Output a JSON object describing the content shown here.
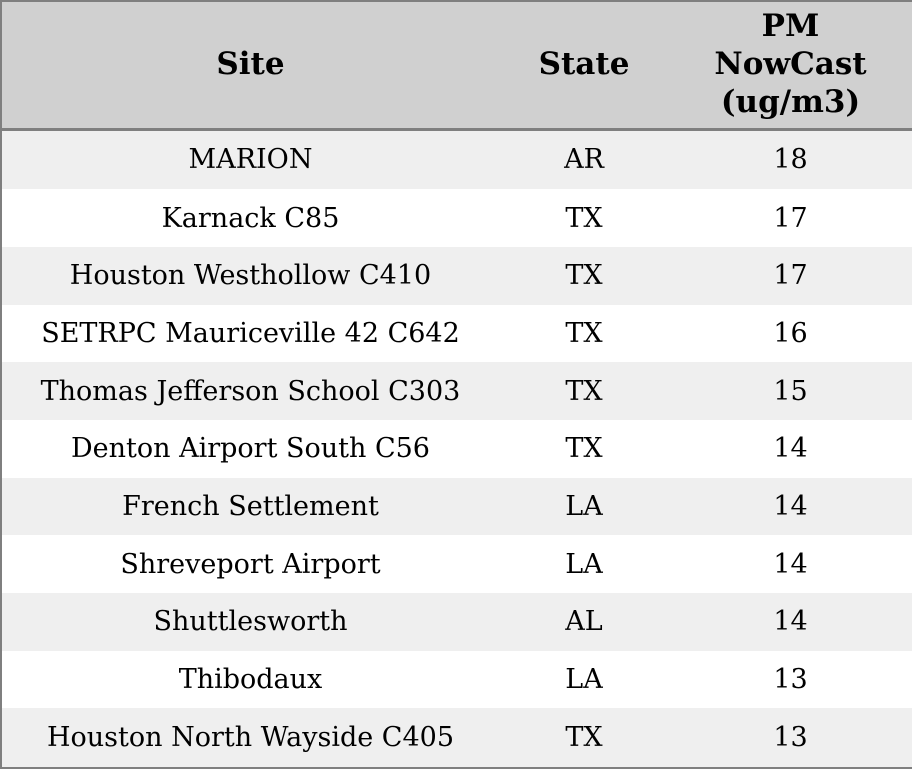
{
  "chart_data": {
    "type": "table",
    "title": "",
    "columns": [
      "Site",
      "State",
      "PM NowCast (ug/m3)"
    ],
    "rows": [
      [
        "MARION",
        "AR",
        18
      ],
      [
        "Karnack C85",
        "TX",
        17
      ],
      [
        "Houston Westhollow C410",
        "TX",
        17
      ],
      [
        "SETRPC Mauriceville 42 C642",
        "TX",
        16
      ],
      [
        "Thomas Jefferson School C303",
        "TX",
        15
      ],
      [
        "Denton Airport South C56",
        "TX",
        14
      ],
      [
        "French Settlement",
        "LA",
        14
      ],
      [
        "Shreveport Airport",
        "LA",
        14
      ],
      [
        "Shuttlesworth",
        "AL",
        14
      ],
      [
        "Thibodaux",
        "LA",
        13
      ],
      [
        "Houston North Wayside C405",
        "TX",
        13
      ]
    ]
  },
  "table": {
    "header": {
      "site": "Site",
      "state": "State",
      "pm": "PM\nNowCast\n(ug/m3)"
    },
    "colors": {
      "outer_border": "#7f7f7f",
      "header_bg": "#d0d0d0",
      "header_separator": "#7f7f7f",
      "row_odd_bg": "#efefef",
      "row_even_bg": "#ffffff",
      "text": "#000000"
    }
  }
}
